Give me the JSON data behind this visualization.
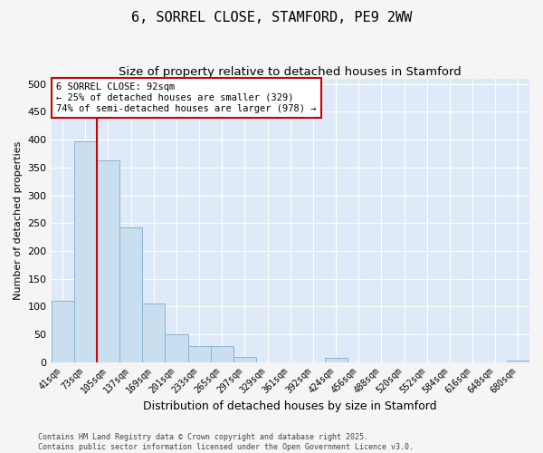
{
  "title": "6, SORREL CLOSE, STAMFORD, PE9 2WW",
  "subtitle": "Size of property relative to detached houses in Stamford",
  "xlabel": "Distribution of detached houses by size in Stamford",
  "ylabel": "Number of detached properties",
  "footer1": "Contains HM Land Registry data © Crown copyright and database right 2025.",
  "footer2": "Contains public sector information licensed under the Open Government Licence v3.0.",
  "categories": [
    "41sqm",
    "73sqm",
    "105sqm",
    "137sqm",
    "169sqm",
    "201sqm",
    "233sqm",
    "265sqm",
    "297sqm",
    "329sqm",
    "361sqm",
    "392sqm",
    "424sqm",
    "456sqm",
    "488sqm",
    "520sqm",
    "552sqm",
    "584sqm",
    "616sqm",
    "648sqm",
    "680sqm"
  ],
  "values": [
    110,
    397,
    363,
    242,
    105,
    50,
    29,
    29,
    9,
    0,
    0,
    0,
    7,
    0,
    0,
    0,
    0,
    0,
    0,
    0,
    3
  ],
  "bar_color": "#c9dff0",
  "bar_edge_color": "#8ab4d4",
  "property_line_x": 1.5,
  "annotation_line1": "6 SORREL CLOSE: 92sqm",
  "annotation_line2": "← 25% of detached houses are smaller (329)",
  "annotation_line3": "74% of semi-detached houses are larger (978) →",
  "annotation_box_facecolor": "#ffffff",
  "annotation_box_edgecolor": "#cc0000",
  "vline_color": "#cc0000",
  "ylim": [
    0,
    510
  ],
  "yticks": [
    0,
    50,
    100,
    150,
    200,
    250,
    300,
    350,
    400,
    450,
    500
  ],
  "background_color": "#deeaf7",
  "plot_bg_color": "#deeaf7",
  "fig_bg_color": "#f5f5f5",
  "grid_color": "#ffffff",
  "title_fontsize": 11,
  "subtitle_fontsize": 9.5,
  "ylabel_fontsize": 8,
  "xlabel_fontsize": 9,
  "annotation_fontsize": 7.5,
  "tick_fontsize": 7,
  "footer_fontsize": 6
}
